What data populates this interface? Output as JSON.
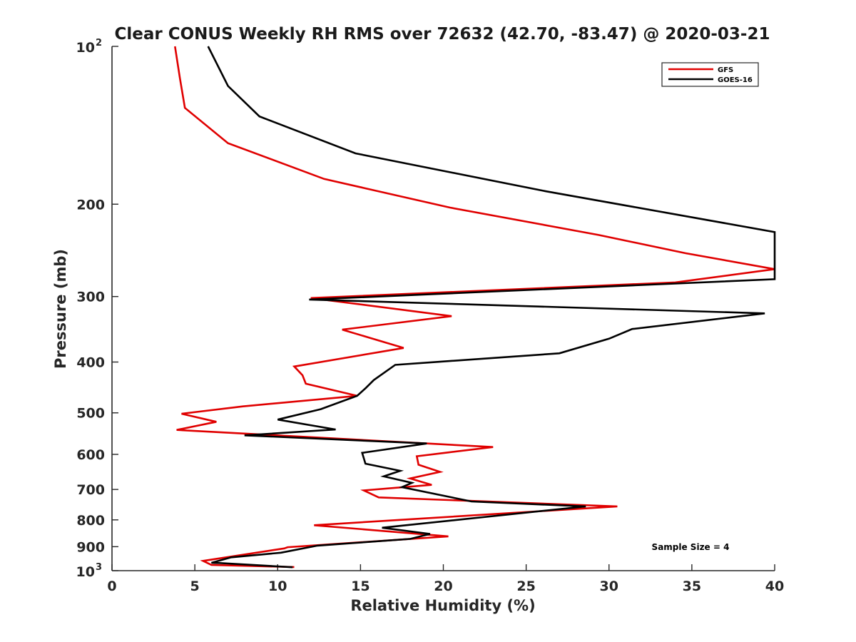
{
  "chart_data": {
    "type": "line",
    "title": "Clear CONUS Weekly RH RMS over 72632 (42.70, -83.47) @ 2020-03-21",
    "xlabel": "Relative Humidity (%)",
    "ylabel": "Pressure (mb)",
    "xlim": [
      0,
      40
    ],
    "ylim": [
      100,
      1000
    ],
    "yscale": "log",
    "y_reversed": true,
    "grid": false,
    "legend_position": "top-right",
    "x_ticks": [
      0,
      5,
      10,
      15,
      20,
      25,
      30,
      35,
      40
    ],
    "x_tick_labels": [
      "0",
      "5",
      "10",
      "15",
      "20",
      "25",
      "30",
      "35",
      "40"
    ],
    "y_ticks": [
      {
        "value": 100,
        "label": "10",
        "exp": "2"
      },
      {
        "value": 200,
        "label": "200",
        "exp": ""
      },
      {
        "value": 300,
        "label": "300",
        "exp": ""
      },
      {
        "value": 400,
        "label": "400",
        "exp": ""
      },
      {
        "value": 500,
        "label": "500",
        "exp": ""
      },
      {
        "value": 600,
        "label": "600",
        "exp": ""
      },
      {
        "value": 700,
        "label": "700",
        "exp": ""
      },
      {
        "value": 800,
        "label": "800",
        "exp": ""
      },
      {
        "value": 900,
        "label": "900",
        "exp": ""
      },
      {
        "value": 1000,
        "label": "10",
        "exp": "3"
      }
    ],
    "annotation": "Sample Size = 4",
    "series": [
      {
        "name": "GFS",
        "color": "#e00000",
        "points": [
          [
            3.8,
            100
          ],
          [
            4.1,
            115
          ],
          [
            4.4,
            131
          ],
          [
            7.0,
            153
          ],
          [
            12.8,
            179
          ],
          [
            20.4,
            203
          ],
          [
            29.4,
            229
          ],
          [
            34.6,
            248
          ],
          [
            40.0,
            266
          ],
          [
            34.0,
            282
          ],
          [
            12.0,
            302
          ],
          [
            20.5,
            327
          ],
          [
            13.9,
            347
          ],
          [
            17.6,
            376
          ],
          [
            11.0,
            408
          ],
          [
            11.5,
            424
          ],
          [
            11.7,
            440
          ],
          [
            14.8,
            464
          ],
          [
            7.9,
            486
          ],
          [
            4.2,
            502
          ],
          [
            6.3,
            520
          ],
          [
            3.9,
            539
          ],
          [
            23.0,
            581
          ],
          [
            18.4,
            605
          ],
          [
            18.5,
            628
          ],
          [
            19.8,
            648
          ],
          [
            18.0,
            667
          ],
          [
            19.3,
            686
          ],
          [
            15.2,
            703
          ],
          [
            16.1,
            725
          ],
          [
            30.5,
            754
          ],
          [
            12.2,
            819
          ],
          [
            20.3,
            860
          ],
          [
            10.6,
            902
          ],
          [
            10.4,
            907
          ],
          [
            5.5,
            958
          ],
          [
            6.0,
            975
          ],
          [
            7.0,
            977
          ],
          [
            11.0,
            984
          ]
        ]
      },
      {
        "name": "GOES-16",
        "color": "#000000",
        "points": [
          [
            5.8,
            100
          ],
          [
            7.0,
            119
          ],
          [
            8.9,
            136
          ],
          [
            14.7,
            160
          ],
          [
            26.2,
            189
          ],
          [
            40.0,
            226
          ],
          [
            40.0,
            278
          ],
          [
            11.9,
            304
          ],
          [
            39.4,
            323
          ],
          [
            31.4,
            346
          ],
          [
            30.0,
            361
          ],
          [
            27.0,
            385
          ],
          [
            17.1,
            405
          ],
          [
            15.8,
            433
          ],
          [
            15.3,
            449
          ],
          [
            14.8,
            464
          ],
          [
            12.6,
            492
          ],
          [
            10.0,
            515
          ],
          [
            13.5,
            538
          ],
          [
            8.0,
            552
          ],
          [
            19.0,
            572
          ],
          [
            15.1,
            596
          ],
          [
            15.3,
            625
          ],
          [
            17.4,
            645
          ],
          [
            16.4,
            661
          ],
          [
            18.1,
            680
          ],
          [
            17.5,
            693
          ],
          [
            21.7,
            738
          ],
          [
            28.6,
            754
          ],
          [
            16.3,
            828
          ],
          [
            19.2,
            851
          ],
          [
            18.0,
            870
          ],
          [
            12.4,
            896
          ],
          [
            10.2,
            924
          ],
          [
            7.2,
            943
          ],
          [
            6.0,
            966
          ],
          [
            6.5,
            967
          ],
          [
            10.9,
            985
          ]
        ]
      }
    ]
  }
}
